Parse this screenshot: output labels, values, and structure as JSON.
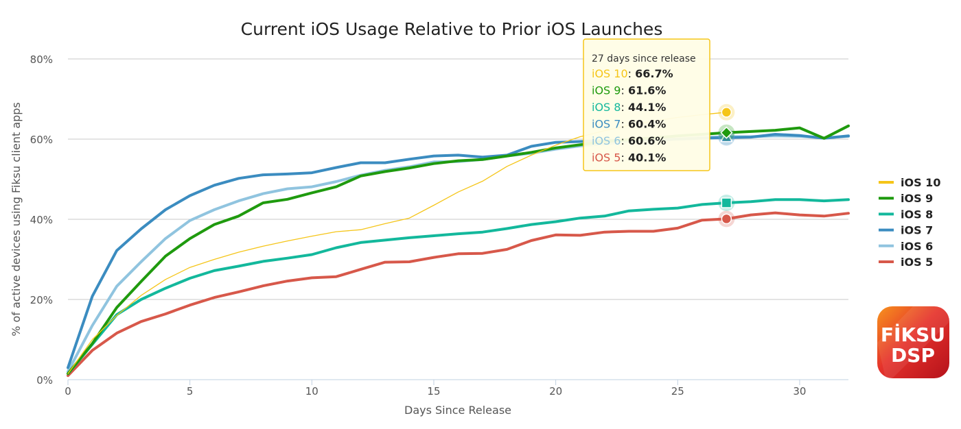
{
  "chart_data": {
    "type": "line",
    "title": "Current iOS Usage Relative to Prior iOS Launches",
    "xlabel": "Days Since Release",
    "ylabel": "% of active devices using Fiksu client apps",
    "xlim": [
      0,
      32
    ],
    "ylim": [
      0,
      80
    ],
    "x_ticks": [
      0,
      5,
      10,
      15,
      20,
      25,
      30
    ],
    "y_ticks": [
      0,
      20,
      40,
      60,
      80
    ],
    "y_tick_labels": [
      "0%",
      "20%",
      "40%",
      "60%",
      "80%"
    ],
    "grid": true,
    "legend_position": "right",
    "series": [
      {
        "name": "iOS 10",
        "color": "#f5c518",
        "width": 1.3,
        "x": [
          0,
          1,
          2,
          3,
          4,
          5,
          6,
          7,
          8,
          9,
          10,
          11,
          12,
          13,
          14,
          15,
          16,
          17,
          18,
          19,
          20,
          21,
          22,
          23,
          24,
          25,
          26,
          27
        ],
        "y": [
          1.5,
          10,
          16,
          21,
          25,
          28,
          30,
          31.8,
          33.3,
          34.6,
          35.8,
          36.9,
          37.4,
          38.9,
          40.3,
          43.5,
          46.8,
          49.5,
          53.2,
          56,
          58.5,
          60.6,
          62.1,
          63.4,
          64.5,
          65.4,
          66.1,
          66.7
        ]
      },
      {
        "name": "iOS 9",
        "color": "#1f9a0e",
        "width": 4,
        "x": [
          0,
          1,
          2,
          3,
          4,
          5,
          6,
          7,
          8,
          9,
          10,
          11,
          12,
          13,
          14,
          15,
          16,
          17,
          18,
          19,
          20,
          21,
          22,
          23,
          24,
          25,
          26,
          27,
          28,
          29,
          30,
          31,
          32
        ],
        "y": [
          1.5,
          9,
          18,
          24.5,
          30.8,
          35.2,
          38.7,
          40.8,
          44.1,
          45,
          46.6,
          48.1,
          50.8,
          51.9,
          52.8,
          53.9,
          54.6,
          54.9,
          55.8,
          56.7,
          57.8,
          58.6,
          59.4,
          59.9,
          60.3,
          60.8,
          61.2,
          61.6,
          61.9,
          62.2,
          62.8,
          60.2,
          63.3
        ]
      },
      {
        "name": "iOS 8",
        "color": "#13b89c",
        "width": 4,
        "x": [
          0,
          1,
          2,
          3,
          4,
          5,
          6,
          7,
          8,
          9,
          10,
          11,
          12,
          13,
          14,
          15,
          16,
          17,
          18,
          19,
          20,
          21,
          22,
          23,
          24,
          25,
          26,
          27,
          28,
          29,
          30,
          31,
          32
        ],
        "y": [
          1.5,
          8.8,
          16.2,
          20,
          22.8,
          25.3,
          27.2,
          28.3,
          29.5,
          30.3,
          31.2,
          32.9,
          34.2,
          34.8,
          35.4,
          35.9,
          36.4,
          36.8,
          37.7,
          38.7,
          39.4,
          40.3,
          40.8,
          42.1,
          42.5,
          42.8,
          43.7,
          44.1,
          44.4,
          44.9,
          44.9,
          44.6,
          44.9
        ]
      },
      {
        "name": "iOS 7",
        "color": "#3b8cc0",
        "width": 4,
        "x": [
          0,
          1,
          2,
          3,
          4,
          5,
          6,
          7,
          8,
          9,
          10,
          11,
          12,
          13,
          14,
          15,
          16,
          17,
          18,
          19,
          20,
          21,
          22,
          23,
          24,
          25,
          26,
          27,
          28,
          29,
          30,
          31,
          32
        ],
        "y": [
          3,
          20.8,
          32.2,
          37.6,
          42.4,
          45.9,
          48.5,
          50.2,
          51.1,
          51.3,
          51.6,
          52.9,
          54.1,
          54.1,
          55,
          55.8,
          56,
          55.5,
          56,
          58.2,
          59.2,
          59.4,
          59.6,
          59.6,
          59.8,
          60,
          60.2,
          60.4,
          60.5,
          61.2,
          60.9,
          60.2,
          60.8
        ]
      },
      {
        "name": "iOS 6",
        "color": "#90c4df",
        "width": 4,
        "x": [
          0,
          1,
          2,
          3,
          4,
          5,
          6,
          7,
          8,
          9,
          10,
          11,
          12,
          13,
          14,
          15,
          16,
          17,
          18,
          19,
          20,
          21,
          22,
          23,
          24,
          25,
          26,
          27,
          28,
          29,
          30,
          31,
          32
        ],
        "y": [
          2,
          13.5,
          23.3,
          29.4,
          35.2,
          39.7,
          42.4,
          44.6,
          46.4,
          47.6,
          48.1,
          49.4,
          51,
          52.2,
          53.1,
          54.3,
          54.4,
          54.9,
          55.8,
          56.5,
          57.5,
          58.3,
          58.8,
          59.4,
          59.7,
          60,
          60.4,
          60.6,
          60.6,
          60.8,
          60.7,
          60.3,
          60.7
        ]
      },
      {
        "name": "iOS 5",
        "color": "#d7584a",
        "width": 4,
        "x": [
          0,
          1,
          2,
          3,
          4,
          5,
          6,
          7,
          8,
          9,
          10,
          11,
          12,
          13,
          14,
          15,
          16,
          17,
          18,
          19,
          20,
          21,
          22,
          23,
          24,
          25,
          26,
          27,
          28,
          29,
          30,
          31,
          32
        ],
        "y": [
          1,
          7.3,
          11.6,
          14.5,
          16.4,
          18.6,
          20.5,
          21.9,
          23.4,
          24.6,
          25.4,
          25.7,
          27.5,
          29.3,
          29.4,
          30.5,
          31.4,
          31.5,
          32.5,
          34.7,
          36.1,
          36,
          36.8,
          37,
          37,
          37.8,
          39.8,
          40.1,
          41.1,
          41.6,
          41.1,
          40.8,
          41.5
        ]
      }
    ],
    "highlight_x": 27,
    "tooltip": {
      "header": "27 days since release",
      "rows": [
        {
          "name": "iOS 10",
          "value": "66.7%",
          "color": "#f5c518"
        },
        {
          "name": "iOS 9",
          "value": "61.6%",
          "color": "#1f9a0e"
        },
        {
          "name": "iOS 8",
          "value": "44.1%",
          "color": "#13b89c"
        },
        {
          "name": "iOS 7",
          "value": "60.4%",
          "color": "#3b8cc0"
        },
        {
          "name": "iOS 6",
          "value": "60.6%",
          "color": "#90c4df"
        },
        {
          "name": "iOS 5",
          "value": "40.1%",
          "color": "#d7584a"
        }
      ]
    }
  },
  "logo": {
    "line1": "FİKSU",
    "line2": "DSP"
  }
}
